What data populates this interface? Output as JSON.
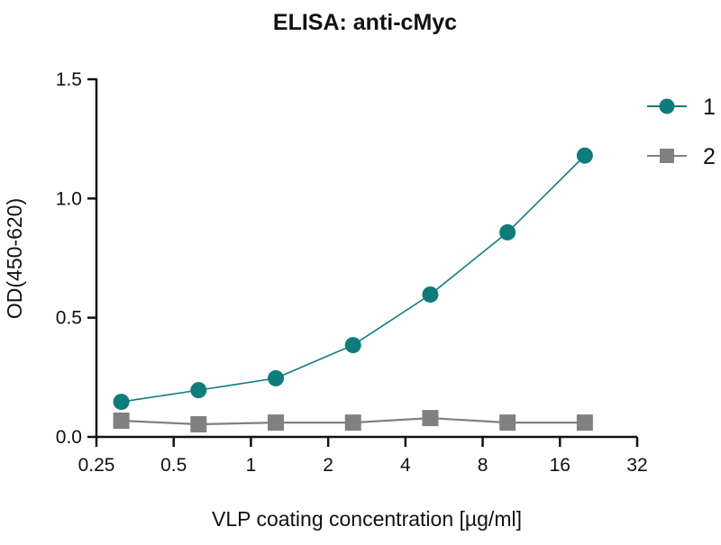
{
  "chart_data": {
    "type": "line",
    "title": "ELISA: anti-cMyc",
    "xlabel": "VLP coating concentration [µg/ml]",
    "ylabel": "OD(450-620)",
    "xscale": "log2",
    "xlim": [
      0.25,
      32
    ],
    "ylim": [
      0,
      1.5
    ],
    "xticks": [
      "0.25",
      "0.5",
      "1",
      "2",
      "4",
      "8",
      "16",
      "32"
    ],
    "xtick_values": [
      0.25,
      0.5,
      1,
      2,
      4,
      8,
      16,
      32
    ],
    "yticks": [
      "0.0",
      "0.5",
      "1.0",
      "1.5"
    ],
    "ytick_values": [
      0,
      0.5,
      1.0,
      1.5
    ],
    "grid": false,
    "legend_position": "top-right",
    "x": [
      0.3125,
      0.625,
      1.25,
      2.5,
      5,
      10,
      20
    ],
    "series": [
      {
        "name": "1",
        "marker": "circle",
        "color": "#0e7c7b",
        "values": [
          0.147,
          0.196,
          0.246,
          0.385,
          0.597,
          0.858,
          1.18
        ]
      },
      {
        "name": "2",
        "marker": "square",
        "color": "#808080",
        "values": [
          0.068,
          0.053,
          0.06,
          0.06,
          0.079,
          0.06,
          0.06
        ]
      }
    ]
  }
}
